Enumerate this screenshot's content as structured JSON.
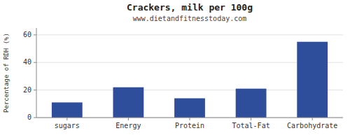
{
  "chart_data": {
    "type": "bar",
    "title": "Crackers, milk per 100g",
    "subtitle": "www.dietandfitnesstoday.com",
    "categories": [
      "sugars",
      "Energy",
      "Protein",
      "Total-Fat",
      "Carbohydrate"
    ],
    "values": [
      11,
      22,
      14,
      21,
      55
    ],
    "color": "#2e4d9b",
    "ylabel": "Percentage of RDH (%)",
    "ylim": [
      0,
      65
    ],
    "yticks": [
      0,
      20,
      40,
      60
    ],
    "grid": true
  }
}
